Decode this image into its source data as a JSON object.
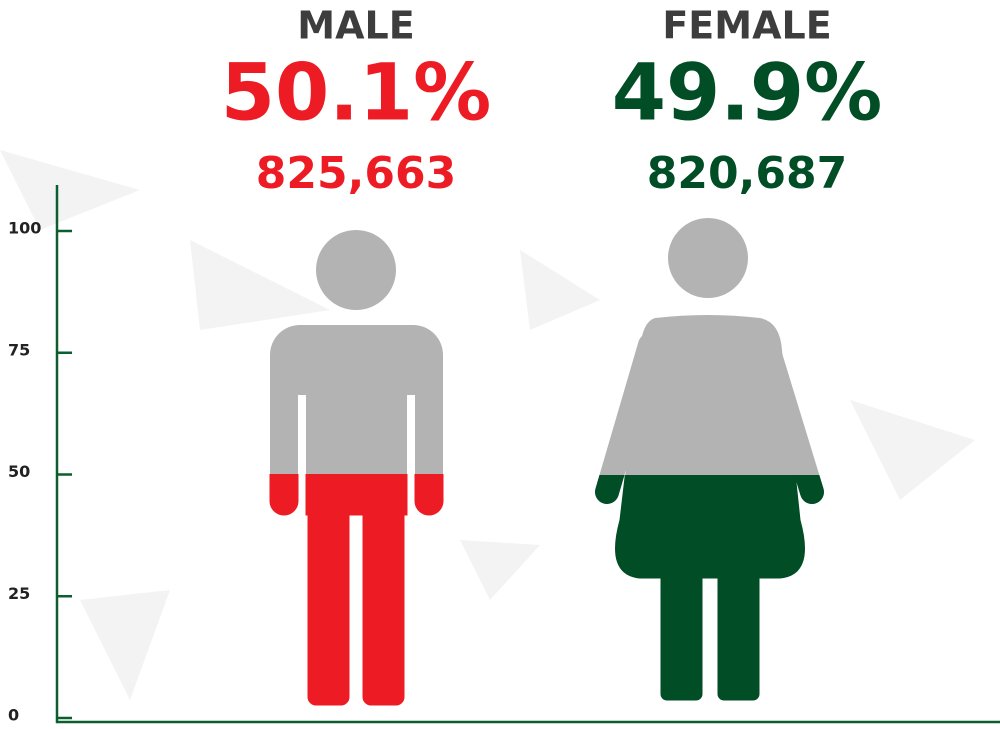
{
  "chart_data": {
    "type": "pictogram",
    "categories": [
      "MALE",
      "FEMALE"
    ],
    "values": [
      50.1,
      49.9
    ],
    "value_labels": [
      "50.1%",
      "49.9%"
    ],
    "population": [
      825663,
      820687
    ],
    "population_labels": [
      "825,663",
      "820,687"
    ],
    "colors": [
      "#ed1c24",
      "#004d26"
    ],
    "ylim": [
      0,
      100
    ],
    "yticks": [
      0,
      25,
      50,
      75,
      100
    ]
  }
}
